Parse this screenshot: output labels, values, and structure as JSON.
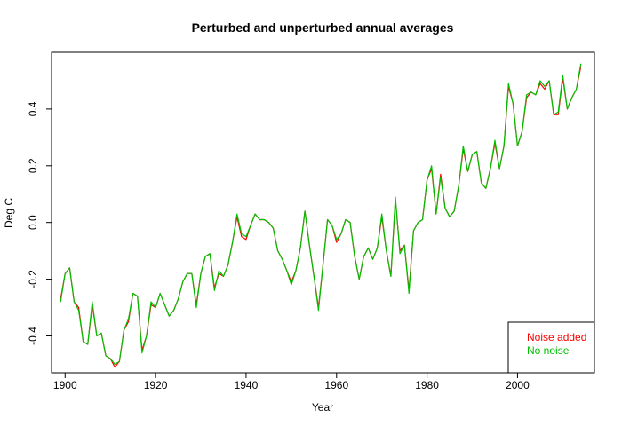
{
  "chart_data": {
    "type": "line",
    "title": "Perturbed and unperturbed annual averages",
    "xlabel": "Year",
    "ylabel": "Deg C",
    "xlim": [
      1897,
      2017
    ],
    "ylim": [
      -0.53,
      0.6
    ],
    "x_ticks": [
      1900,
      1920,
      1940,
      1960,
      1980,
      2000
    ],
    "x_tick_labels": [
      "1900",
      "1920",
      "1940",
      "1960",
      "1980",
      "2000"
    ],
    "y_ticks": [
      -0.4,
      -0.2,
      0.0,
      0.2,
      0.4
    ],
    "y_tick_labels": [
      "-0.4",
      "-0.2",
      "0.0",
      "0.2",
      "0.4"
    ],
    "grid": false,
    "legend": {
      "position": "bottom-right",
      "entries": [
        {
          "label": "Noise added",
          "color": "#ff0000"
        },
        {
          "label": "No noise",
          "color": "#00c000"
        }
      ]
    },
    "x": [
      1899,
      1900,
      1901,
      1902,
      1903,
      1904,
      1905,
      1906,
      1907,
      1908,
      1909,
      1910,
      1911,
      1912,
      1913,
      1914,
      1915,
      1916,
      1917,
      1918,
      1919,
      1920,
      1921,
      1922,
      1923,
      1924,
      1925,
      1926,
      1927,
      1928,
      1929,
      1930,
      1931,
      1932,
      1933,
      1934,
      1935,
      1936,
      1937,
      1938,
      1939,
      1940,
      1941,
      1942,
      1943,
      1944,
      1945,
      1946,
      1947,
      1948,
      1949,
      1950,
      1951,
      1952,
      1953,
      1954,
      1955,
      1956,
      1957,
      1958,
      1959,
      1960,
      1961,
      1962,
      1963,
      1964,
      1965,
      1966,
      1967,
      1968,
      1969,
      1970,
      1971,
      1972,
      1973,
      1974,
      1975,
      1976,
      1977,
      1978,
      1979,
      1980,
      1981,
      1982,
      1983,
      1984,
      1985,
      1986,
      1987,
      1988,
      1989,
      1990,
      1991,
      1992,
      1993,
      1994,
      1995,
      1996,
      1997,
      1998,
      1999,
      2000,
      2001,
      2002,
      2003,
      2004,
      2005,
      2006,
      2007,
      2008,
      2009,
      2010,
      2011,
      2012,
      2013,
      2014
    ],
    "series": [
      {
        "name": "Noise added",
        "color": "#ff0000",
        "values": [
          -0.27,
          -0.18,
          -0.16,
          -0.28,
          -0.3,
          -0.42,
          -0.43,
          -0.29,
          -0.4,
          -0.39,
          -0.47,
          -0.48,
          -0.51,
          -0.49,
          -0.38,
          -0.35,
          -0.25,
          -0.26,
          -0.45,
          -0.4,
          -0.29,
          -0.3,
          -0.25,
          -0.29,
          -0.33,
          -0.31,
          -0.27,
          -0.21,
          -0.18,
          -0.18,
          -0.29,
          -0.18,
          -0.12,
          -0.11,
          -0.23,
          -0.18,
          -0.19,
          -0.15,
          -0.07,
          0.02,
          -0.05,
          -0.06,
          -0.01,
          0.03,
          0.01,
          0.01,
          0.0,
          -0.02,
          -0.1,
          -0.13,
          -0.17,
          -0.21,
          -0.17,
          -0.09,
          0.04,
          -0.08,
          -0.19,
          -0.3,
          -0.15,
          0.01,
          -0.01,
          -0.07,
          -0.04,
          0.01,
          0.0,
          -0.12,
          -0.2,
          -0.12,
          -0.09,
          -0.13,
          -0.09,
          0.02,
          -0.1,
          -0.19,
          0.08,
          -0.1,
          -0.08,
          -0.24,
          -0.03,
          0.0,
          0.01,
          0.15,
          0.19,
          0.03,
          0.17,
          0.05,
          0.02,
          0.04,
          0.13,
          0.26,
          0.18,
          0.24,
          0.25,
          0.14,
          0.12,
          0.19,
          0.28,
          0.19,
          0.27,
          0.48,
          0.42,
          0.27,
          0.32,
          0.44,
          0.46,
          0.45,
          0.49,
          0.47,
          0.5,
          0.38,
          0.38,
          0.51,
          0.4,
          0.44,
          0.47,
          0.55
        ]
      },
      {
        "name": "No noise",
        "color": "#00c000",
        "values": [
          -0.28,
          -0.18,
          -0.16,
          -0.28,
          -0.31,
          -0.42,
          -0.43,
          -0.28,
          -0.4,
          -0.39,
          -0.47,
          -0.48,
          -0.5,
          -0.49,
          -0.38,
          -0.34,
          -0.25,
          -0.26,
          -0.46,
          -0.4,
          -0.28,
          -0.3,
          -0.25,
          -0.29,
          -0.33,
          -0.31,
          -0.27,
          -0.21,
          -0.18,
          -0.18,
          -0.3,
          -0.18,
          -0.12,
          -0.11,
          -0.24,
          -0.17,
          -0.19,
          -0.15,
          -0.07,
          0.03,
          -0.04,
          -0.05,
          -0.01,
          0.03,
          0.01,
          0.01,
          0.0,
          -0.02,
          -0.1,
          -0.13,
          -0.17,
          -0.22,
          -0.17,
          -0.09,
          0.04,
          -0.08,
          -0.19,
          -0.31,
          -0.15,
          0.01,
          -0.01,
          -0.06,
          -0.04,
          0.01,
          0.0,
          -0.12,
          -0.2,
          -0.12,
          -0.09,
          -0.13,
          -0.09,
          0.03,
          -0.1,
          -0.19,
          0.09,
          -0.11,
          -0.08,
          -0.25,
          -0.03,
          0.0,
          0.01,
          0.15,
          0.2,
          0.03,
          0.16,
          0.05,
          0.02,
          0.04,
          0.13,
          0.27,
          0.18,
          0.24,
          0.25,
          0.14,
          0.12,
          0.19,
          0.29,
          0.19,
          0.27,
          0.49,
          0.42,
          0.27,
          0.32,
          0.45,
          0.46,
          0.45,
          0.5,
          0.48,
          0.5,
          0.38,
          0.39,
          0.52,
          0.4,
          0.44,
          0.47,
          0.56
        ]
      }
    ]
  }
}
